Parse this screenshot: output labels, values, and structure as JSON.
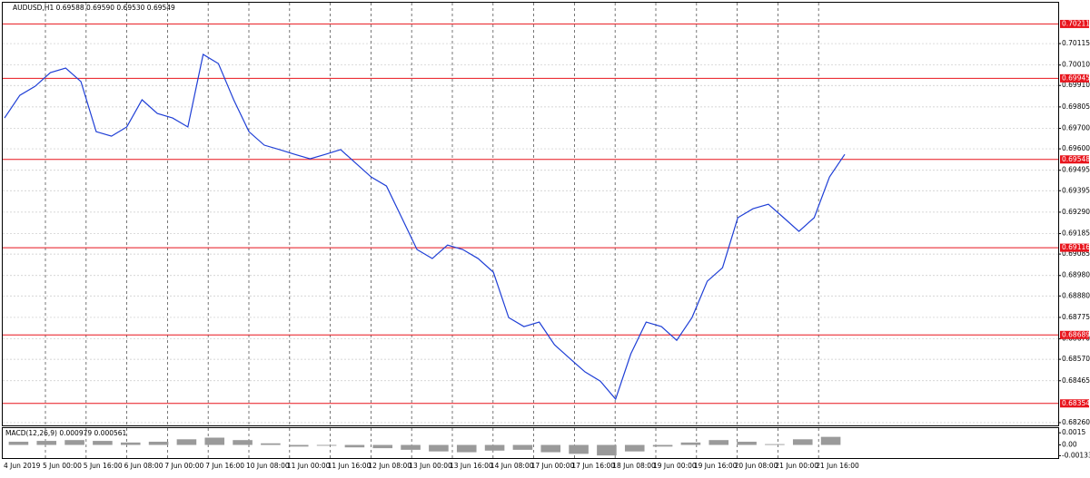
{
  "chart_data": {
    "type": "line",
    "title": "AUDUSD,H1  0.69588 0.69590 0.69530 0.69549",
    "series": [
      {
        "color": "#1f3fd6",
        "values": [
          0.69751,
          0.69862,
          0.69906,
          0.69973,
          0.69995,
          0.69929,
          0.69684,
          0.69662,
          0.69707,
          0.6984,
          0.69773,
          0.69751,
          0.69707,
          0.70062,
          0.70017,
          0.6984,
          0.69684,
          0.69618,
          0.69596,
          0.69573,
          0.69551,
          0.69573,
          0.69596,
          0.69529,
          0.69462,
          0.69418,
          0.69263,
          0.69107,
          0.69063,
          0.69129,
          0.69107,
          0.69063,
          0.68996,
          0.68774,
          0.6873,
          0.68752,
          0.68641,
          0.68574,
          0.68508,
          0.68463,
          0.68375,
          0.68597,
          0.68752,
          0.6873,
          0.68663,
          0.68774,
          0.68952,
          0.69018,
          0.69263,
          0.69307,
          0.69329,
          0.69263,
          0.69196,
          0.69263,
          0.69462,
          0.69573
        ]
      }
    ],
    "ylim": [
      0.68242,
      0.70315
    ],
    "yticks": [
      0.70115,
      {
        "value": 0.7001,
        "label": "0.70010"
      },
      {
        "value": 0.6991,
        "label": "0.69910"
      },
      0.69805,
      {
        "value": 0.697,
        "label": "0.69700"
      },
      {
        "value": 0.696,
        "label": "0.69600"
      },
      0.69495,
      0.69395,
      {
        "value": 0.6929,
        "label": "0.69290"
      },
      0.69185,
      0.69085,
      {
        "value": 0.6898,
        "label": "0.68980"
      },
      {
        "value": 0.6888,
        "label": "0.68880"
      },
      0.68775,
      {
        "value": 0.6867,
        "label": "0.68670"
      },
      {
        "value": 0.6857,
        "label": "0.68570"
      },
      0.68465,
      {
        "value": 0.6826,
        "label": "0.68260"
      }
    ],
    "levels": [
      0.70211,
      0.69945,
      0.69548,
      0.69116,
      0.68689,
      0.68354
    ],
    "level_color": "#e8141c",
    "xticks": [
      "4 Jun 2019",
      "5 Jun 00:00",
      "5 Jun 16:00",
      "6 Jun 08:00",
      "7 Jun 00:00",
      "7 Jun 16:00",
      "10 Jun 08:00",
      "11 Jun 00:00",
      "11 Jun 16:00",
      "12 Jun 08:00",
      "13 Jun 00:00",
      "13 Jun 16:00",
      "14 Jun 08:00",
      "17 Jun 00:00",
      "17 Jun 16:00",
      "18 Jun 08:00",
      "19 Jun 00:00",
      "19 Jun 16:00",
      "20 Jun 08:00",
      "21 Jun 00:00",
      "21 Jun 16:00"
    ],
    "grid": true,
    "macd": {
      "title": "MACD(12,26,9) 0.000979 0.000561",
      "color": "#9a9a9a",
      "values": [
        0.0004,
        0.0005,
        0.0006,
        0.0005,
        0.0003,
        0.0004,
        0.0007,
        0.0009,
        0.0006,
        0.0002,
        -0.0002,
        -0.0001,
        -0.0003,
        -0.0004,
        -0.0006,
        -0.0008,
        -0.0009,
        -0.0007,
        -0.0006,
        -0.0009,
        -0.0011,
        -0.0013,
        -0.0008,
        -0.0002,
        0.0003,
        0.0006,
        0.0004,
        0.0001,
        0.0007,
        0.001
      ],
      "ylim": [
        -0.00162,
        0.00208
      ],
      "yticks": [
        0.0015,
        {
          "value": 0,
          "label": "0.00"
        },
        -0.001331
      ]
    }
  }
}
